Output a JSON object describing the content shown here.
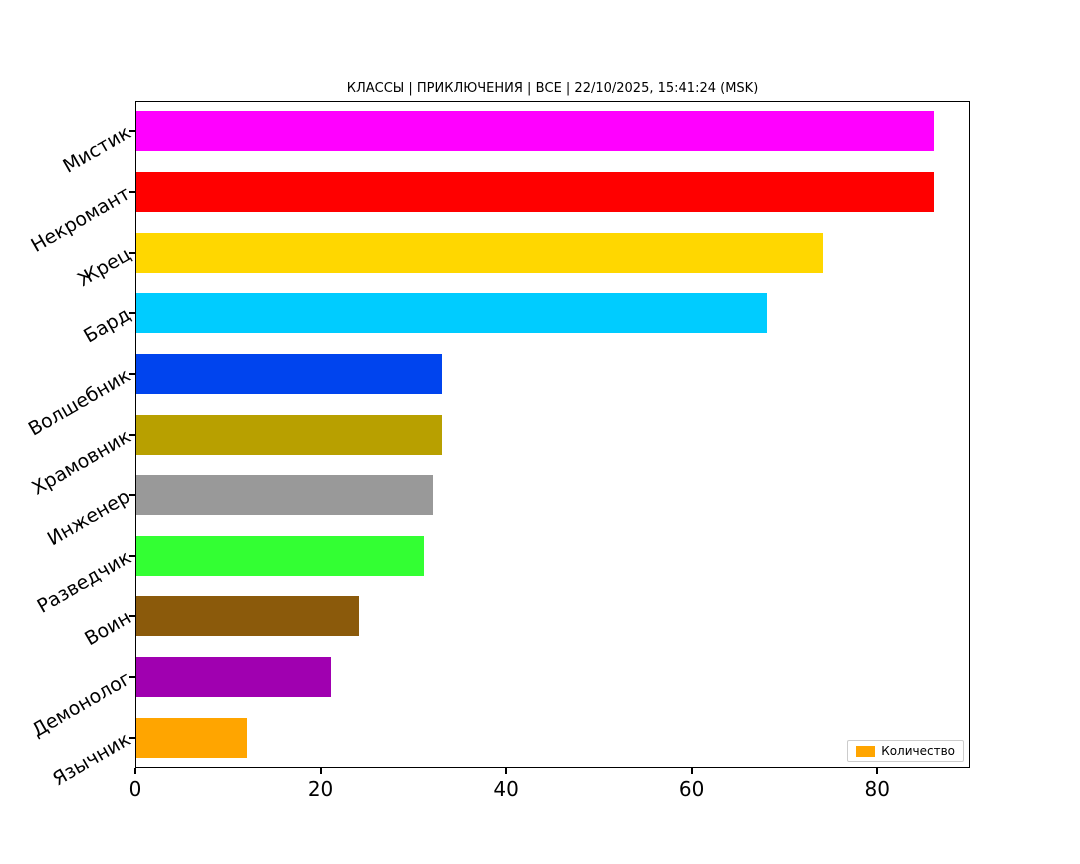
{
  "chart_data": {
    "type": "bar",
    "orientation": "horizontal",
    "title": "КЛАССЫ | ПРИКЛЮЧЕНИЯ | ВСЕ | 22/10/2025, 15:41:24 (MSK)",
    "categories": [
      "Мистик",
      "Некромант",
      "Жрец",
      "Бард",
      "Волшебник",
      "Храмовник",
      "Инженер",
      "Разведчик",
      "Воин",
      "Демонолог",
      "Язычник"
    ],
    "values": [
      86,
      86,
      74,
      68,
      33,
      33,
      32,
      31,
      24,
      21,
      12
    ],
    "colors": [
      "#ff00ff",
      "#ff0000",
      "#ffd700",
      "#00ccff",
      "#0044ee",
      "#b8a000",
      "#999999",
      "#33ff33",
      "#8b5a0b",
      "#a000b0",
      "#ffa500"
    ],
    "xlabel": "",
    "ylabel": "",
    "xlim": [
      0,
      90
    ],
    "xticks": [
      0,
      20,
      40,
      60,
      80
    ],
    "grid": false,
    "legend": {
      "label": "Количество",
      "swatch_color": "#ffa500",
      "position": "lower right"
    }
  }
}
